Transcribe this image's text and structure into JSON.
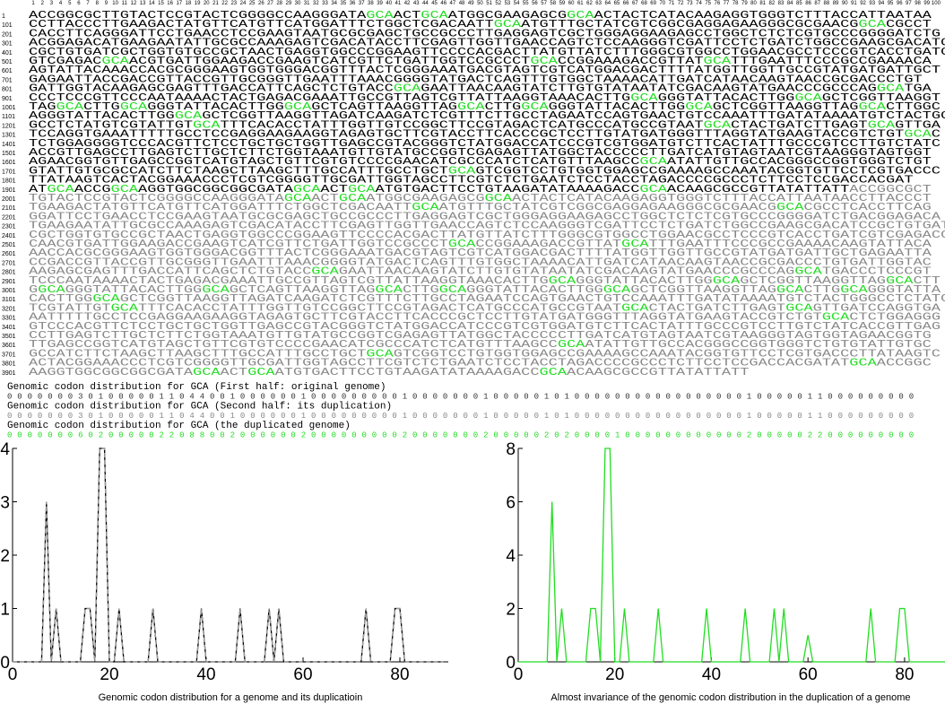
{
  "sequence": {
    "highlight": "GCA",
    "highlight_color": "#22dd22",
    "original_color": "#000000",
    "duplicate_color": "#888888",
    "column_numbers": [
      1,
      2,
      3,
      4,
      5,
      6,
      7,
      8,
      9,
      10,
      11,
      12,
      13,
      14,
      15,
      16,
      17,
      18,
      19,
      20,
      21,
      22,
      23,
      24,
      25,
      26,
      27,
      28,
      29,
      30,
      31,
      32,
      33,
      34,
      35,
      36,
      37,
      38,
      39,
      40,
      41,
      42,
      43,
      44,
      45,
      46,
      47,
      48,
      49,
      50,
      51,
      52,
      53,
      54,
      55,
      56,
      57,
      58,
      59,
      60,
      61,
      62,
      63,
      64,
      65,
      66,
      67,
      68,
      69,
      70,
      71,
      72,
      73,
      74,
      75,
      76,
      77,
      78,
      79,
      80,
      81,
      82,
      83,
      84,
      85,
      86,
      87,
      88,
      89,
      90,
      91,
      92,
      93,
      94,
      95,
      96,
      97,
      98,
      99,
      100
    ],
    "rows": [
      {
        "number": "1",
        "original": "ACCGGCGCTTGTACTCCGTACTCGGGGCCAAGGGATAGCAACTGCAATGGCGAAGAGCGGCAACTACTCATACAAGAGGTGGGTCTTTACCATTAATAA"
      },
      {
        "number": "101",
        "original": "CCTTACCCTTGAAGACTATGTTCATGTTCATGGATTTCTGGCTCGACAATTGCAATGTTTGCTATCGTCGGCGAGGAGAAGGGCGCGAACGGCACGCCT"
      },
      {
        "number": "201",
        "original": "CACCTTCAGGGATTCCTGAACCTCCGAAGTAATGCGCGAGCTGCCGCCCTTGAGGAGTCGCTGGGAGGAAGAGCCTGGCTCTCTCGTGCCCGGGGATCTG"
      },
      {
        "number": "301",
        "original": "ACGGAGACATGAAGAATATTGCGCCAAAGAGTCGACATACCTTCGAGTTGGTTGAACCAGTCTCCAAGGGTCGATTCCTCTGATCTGGCCGAAGCGACATC"
      },
      {
        "number": "401",
        "original": "CGCTGTGATCGCTGGTGTGCCGCTAACTGAGGTGGCCCGGAAGTTCCCCACGACTTATGTTATCTTTGGGCGTGGCCTGGAACGCCTCCCGTCACCTGATC"
      },
      {
        "number": "501",
        "original": "GTCGAGACGCAACGTGATTGGAAGACCGAAGTCATCGTTCTGATTGGTCCGCCCTGCACCGGAAAGACCGTTATGCATTTGAATTTCCCGCCGAAAACA"
      },
      {
        "number": "601",
        "original": "AGTATTACAAACCACGCGGGAAGTGGTGGGACGGTTTACTCGGGAAATGACGTAGTCGTCATGGACGACTTTTATGGTTGGTTGCCGTATGATGATTGCT"
      },
      {
        "number": "701",
        "original": "GAGAATTACCGACCGTTACCGTTGCGGGTTGAATTTAAACGGGGTATGACTCAGTTTGTGGCTAAAACATTGATCATAACAAGTAACCGCGACCCTGT"
      },
      {
        "number": "801",
        "original": "GATTGGTACAAGAGCGAGTTTGACCATTCAGCTCTGTACCGCAGAATTAACAAGTATCTTGTGTATAATATCGACAAGTATGAACCCGCCCAGGCATGA"
      },
      {
        "number": "901",
        "original": "CCCTCCCGTTCCCAATAAAACTACTGAGACGAAATTGCCGTTAGTCGTTATTAAGGTAAACACTTGGCAGGGTATTACACTTGGGCAGCTCGGTTAAGGT"
      },
      {
        "number": "1001",
        "original": "TAGGCACTTGGCAGGGTATTACACTTGGGCAGCTCAGTTAAGGTTAGGCACTTGGCAGGGTATTACACTTGGGCAGCTCGGTTAAGGTTAGGCACTTGGC"
      },
      {
        "number": "1101",
        "original": "AGGGTATTACACTTGGGCAGCTCGGTTAAGGTTAGATCAAGATCTCGTTTCTTGCCTAGAATCCAGTGAACTGTCCAAATTTGATATAAAATGTCTACTGG"
      },
      {
        "number": "1201",
        "original": "GCCTCTATGTCGTATTGTGCATTTCACACCTATTTGGTTGTCCGGCTTCCGTAGACTCATGCCCATGCCGTAATGCACTACTGATCTTGAGTGCAGTTGA"
      },
      {
        "number": "1301",
        "original": "TCCAGGTGAAATTTTTGCCTCCGAGGAAGAAGGTAGAGTGCTTCGTACCTTCACCCGCTCCTTGTATGATGGGTTTAGGTATGAAGTACCGTCTGTGCAC"
      },
      {
        "number": "1401",
        "original": "TCTGGAGGGGTCCCACGTTCTCCTGCTGCTGGTTGAGCCGTACGGGTCTATGGACCATCCCGTCGTGGATGTCTTCACTATTTGCCCGTCCTTGTCTATC"
      },
      {
        "number": "1501",
        "original": "ACCGTTGAGCCTTGAGTCTTGCTCTTCTGGTAAATGTTGTATGCCGGTCGAGAGTTATGGCTACCCCCTTGATCATGTAGTAATCGTAAGGGTAGTGGT"
      },
      {
        "number": "1601",
        "original": "AGAACGGTGTTGAGCCGGTCATGTAGCTGTTCGTGTCCCCGAACATCGCCCATCTCATGTTTAAGCCGCAATATTGTTGCCACGGGCCGGTGGGTCTGT"
      },
      {
        "number": "1701",
        "original": "GTATTGTGCGCCATCTTCTAAGCTTAAGCTTTGCCATTTGCCTGCTGCAGTCGGTCCTGTGGTGGAGCCGAAAAGCCAAATACGGTGTTCCTCGTGACCC"
      },
      {
        "number": "1801",
        "original": "TTATAAGTCACTACGGAAACCCTCGTCGGGGTTGCGATTGGTAGCCTTCGTCTCTGAATCTCCTACCTAGACCCCGCCCTCTTCCTCCGACCACGAT"
      },
      {
        "number": "1901",
        "original": "ATGCAACCGGCAAGGTGGCGGCGGCGATAGCAACTGCAATGTGACTTCCTGTAAGATATAAAAGACCGCAACAAGCGCCGTTATATTATT",
        "duplicate": "ACCGGCGCT"
      },
      {
        "number": "2001",
        "duplicate": "TGTACTCCGTACTCGGGGCCAAGGGATAGCAACTGCAATGGCGAAGAGCGGCAACTACTCATACAAGAGGTGGGTCTTTACCATTAATAACCTTACCCT"
      },
      {
        "number": "2101",
        "duplicate": "TGAAGACTATGTTCATGTTCATGGATTTCTGGCTCGACAATTGCAATGTTTGCTATCGTCGGCGAGGAGAAGGGCGCGAACGGCACGCCTCACCTTCAG"
      },
      {
        "number": "2201",
        "duplicate": "GGATTCCTGAACCTCCGAAGTAATGCGCGAGCTGCCGCCCTTGAGGAGTCGCTGGGAGGAAGAGCCTGGCTCTCTCGTGCCCGGGGATCTGACGGAGACA"
      },
      {
        "number": "2301",
        "duplicate": "TGAAGAATATTGCGCCAAAGAGTCGACATACCTTCGAGTTGGTTGAACCAGTCTCCAAGGGTCGATTCCTCTGATCTGGCCGAAGCGACATCCGCTGTGAT"
      },
      {
        "number": "2401",
        "duplicate": "CGCTGGTGTGCCGCTAACTGAGGTGGCCCGGAAGTTCCCCACGACTTATGTTATCTTTGGGCGTGGCCTGGAACGCCTCCCGTCACCTGATCGTCGAGACG"
      },
      {
        "number": "2501",
        "duplicate": "CAACGTGATTGGAAGACCGAAGTCATCGTTCTGATTGGTCCGCCCTGCACCGGAAAGACCGTTATGCATTTGAATTTCCCGCCGAAAACAAGTATTACA"
      },
      {
        "number": "2601",
        "duplicate": "AACCACGCGGGAAGTGGTGGGACGGTTTACTCGGGAAATGACGTAGTCGTCATGGACGACTTTTATGGTTGGTTGCCGTATGATGATTGCTGAGAATTA"
      },
      {
        "number": "2701",
        "duplicate": "CCGACCGTTACCGTTGCGGGTTGAATTTAAACGGGGTATGACTCAGTTTGTGGCTAAAACATTGATCATAACAAGTAACCGCGACCCTGTGATTGGTAC"
      },
      {
        "number": "2801",
        "duplicate": "AAGAGCGAGTTTGACCATTCAGCTCTGTACCGCAGAATTAACAAGTATCTTGTGTATAATATCGACAAGTATGAACCCGCCCAGGCATGACCCTCCCGT"
      },
      {
        "number": "2901",
        "duplicate": "TCCCAATAAAACTACTGAGACGAAATTGCCGTTAGTCGTTATTAAGGTAAACACTTGGCAGGGTATTACACTTGGGCAGCTCGGTTAAGGTTAGGCACTT"
      },
      {
        "number": "3001",
        "duplicate": "GGCAGGGTATTACACTTGGGCAGCTCAGTTAAGGTTAGGCACTTGGCAGGGTATTACACTTGGGCAGCTCGGTTAAGGTTAGGCACTTGGCAGGGTATTA"
      },
      {
        "number": "3101",
        "duplicate": "CACTTGGGCAGCTCGGTTAAGGTTAGATCAAGATCTCGTTTCTTGCCTAGAATCCAGTGAACTGTCCAAATTTGATATAAAATGTCTACTGGGCCTCTATG"
      },
      {
        "number": "3201",
        "duplicate": "TCGTATTGTGCATTTCACACCTATTTGGTTGTCCGGCTTCCGTAGACTCATGCCCATGCCGTAATGCACTACTGATCTTGAGTGCAGTTGATCCAGGTGA"
      },
      {
        "number": "3301",
        "duplicate": "AATTTTTGCCTCCGAGGAAGAAGGTAGAGTGCTTCGTACCTTCACCCGCTCCTTGTATGATGGGTTTAGGTATGAAGTACCGTCTGTGCACTCTGGAGGG"
      },
      {
        "number": "3401",
        "duplicate": "GTCCCACGTTCTCCTGCTGCTGGTTGAGCCGTACGGGTCTATGGACCATCCCGTCGTGGATGTCTTCACTATTTGCCCGTCCTTGTCTATCACCGTTGAG"
      },
      {
        "number": "3501",
        "duplicate": "CCTTGAGTCTTGCTCTTCTGGTAAATGTTGTATGCCGGTCGAGAGTTATGGCTACCCCCTTGATCATGTAGTAATCGTAAGGGTAGTGGTAGAACGGTG"
      },
      {
        "number": "3601",
        "duplicate": "TTGAGCCGGTCATGTAGCTGTTCGTGTCCCCGAACATCGCCCATCTCATGTTTAAGCCGCAATATTGTTGCCACGGGCCGGTGGGTCTGTGTATTGTGC"
      },
      {
        "number": "3701",
        "duplicate": "GCCATCTTCTAAGCTTAAGCTTTGCCATTTGCCTGCTGCAGTCGGTCCTGTGGTGGAGCCGAAAAGCCAAATACGGTGTTCCTCGTGACCCTTATAAGTC"
      },
      {
        "number": "3801",
        "duplicate": "ACTACGGAAACCCTCGTCGGGGTTGCGATTGGTAGCCTTCGTCTCTGAATCTCCTACCTAGACCCCGCCCTCTTCCTCCGACCACGATATGCAACCGGC"
      },
      {
        "number": "3901",
        "duplicate": "AAGGTGGCGGCGGCGATAGCAACTGCAATGTGACTTCCTGTAAGATATAAAAGACCGCAACAAGCGCCGTTATATTATT"
      }
    ]
  },
  "codon_rows": [
    {
      "title": "Genomic codon distribution for GCA (First half: original genome)",
      "source": "chart_data.0.series.0.values",
      "color": "#333333"
    },
    {
      "title": "Genomic codon distribution for GCA (Second half: its duplication)",
      "source": "chart_data.0.series.1.values",
      "color": "#888888"
    },
    {
      "title": "Genomic codon distribution for GCA (the duplicated genome)",
      "source": "chart_data.1.series.0.values",
      "color": "#22dd22"
    }
  ],
  "chart_data": [
    {
      "type": "line",
      "xlabel": "Genomic codon distribution for a genome and its duplicatioin",
      "xlim": [
        0,
        90
      ],
      "ylim": [
        0,
        4
      ],
      "xticks": [
        0,
        20,
        40,
        60,
        80
      ],
      "yticks": [
        0,
        1,
        2,
        3,
        4
      ],
      "series": [
        {
          "color": "#000000",
          "dashed": false,
          "values": [
            0,
            0,
            0,
            0,
            0,
            0,
            0,
            3,
            0,
            1,
            0,
            0,
            0,
            0,
            0,
            1,
            1,
            0,
            4,
            4,
            0,
            0,
            1,
            0,
            0,
            0,
            0,
            0,
            0,
            1,
            0,
            0,
            0,
            0,
            0,
            0,
            0,
            0,
            0,
            1,
            0,
            0,
            0,
            0,
            0,
            0,
            0,
            1,
            0,
            0,
            0,
            0,
            0,
            1,
            0,
            1,
            0,
            0,
            0,
            0,
            0,
            0,
            0,
            0,
            0,
            0,
            0,
            0,
            0,
            0,
            0,
            0,
            0,
            1,
            0,
            0,
            0,
            0,
            0,
            1,
            1,
            0,
            0,
            0,
            0,
            0,
            0,
            0,
            0,
            0
          ]
        },
        {
          "color": "#999999",
          "dashed": true,
          "values": [
            0,
            0,
            0,
            0,
            0,
            0,
            0,
            3,
            0,
            1,
            0,
            0,
            0,
            0,
            0,
            1,
            1,
            0,
            4,
            4,
            0,
            0,
            1,
            0,
            0,
            0,
            0,
            0,
            0,
            1,
            0,
            0,
            0,
            0,
            0,
            0,
            0,
            0,
            0,
            1,
            0,
            0,
            0,
            0,
            0,
            0,
            0,
            1,
            0,
            0,
            0,
            0,
            0,
            1,
            0,
            1,
            0,
            0,
            0,
            0,
            0,
            0,
            0,
            0,
            0,
            0,
            0,
            0,
            0,
            0,
            0,
            0,
            0,
            1,
            0,
            0,
            0,
            0,
            0,
            1,
            1,
            0,
            0,
            0,
            0,
            0,
            0,
            0,
            0,
            0
          ]
        }
      ]
    },
    {
      "type": "line",
      "xlabel": "Almost invariance of the genomic codon distribution in the duplication of a genome",
      "xlim": [
        0,
        88
      ],
      "ylim": [
        0,
        8
      ],
      "xticks": [
        0,
        20,
        40,
        60,
        80
      ],
      "yticks": [
        0,
        2,
        4,
        6,
        8
      ],
      "series": [
        {
          "color": "#22dd22",
          "dashed": false,
          "values": [
            0,
            0,
            0,
            0,
            0,
            0,
            0,
            6,
            0,
            2,
            0,
            0,
            0,
            0,
            0,
            2,
            2,
            0,
            8,
            8,
            0,
            0,
            2,
            0,
            0,
            0,
            0,
            0,
            0,
            2,
            0,
            0,
            0,
            0,
            0,
            0,
            0,
            0,
            0,
            2,
            0,
            0,
            0,
            0,
            0,
            0,
            0,
            2,
            0,
            0,
            0,
            0,
            0,
            2,
            0,
            2,
            0,
            0,
            0,
            0,
            1,
            0,
            0,
            0,
            0,
            0,
            0,
            0,
            0,
            0,
            0,
            0,
            0,
            2,
            0,
            0,
            0,
            0,
            0,
            2,
            2,
            0,
            0,
            0,
            0,
            0,
            0,
            0,
            0,
            0
          ]
        }
      ]
    }
  ]
}
